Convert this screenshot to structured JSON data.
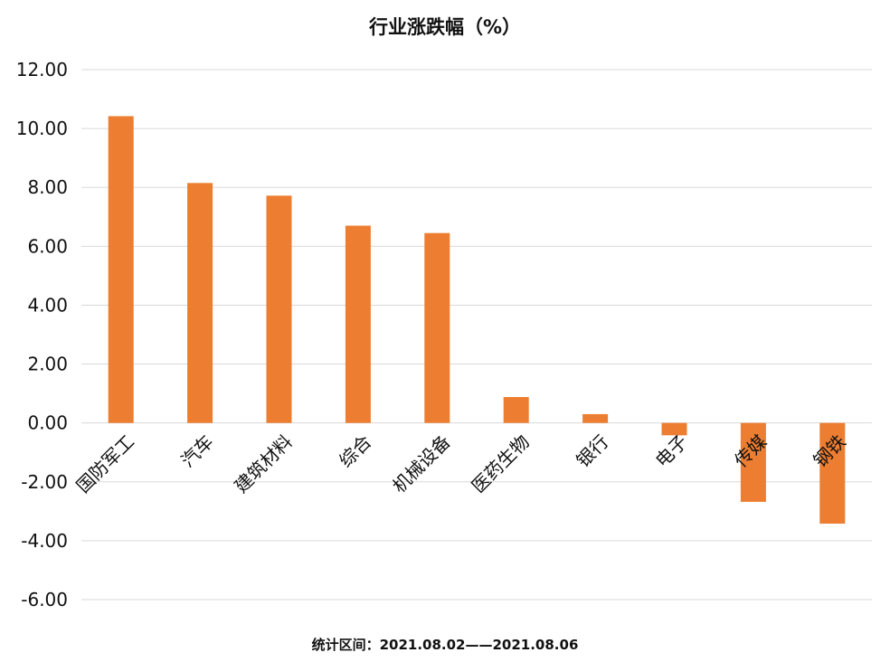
{
  "chart_data": {
    "type": "bar",
    "title": "行业涨跌幅（%）",
    "footer": "统计区间：2021.08.02——2021.08.06",
    "categories": [
      "国防军工",
      "汽车",
      "建筑材料",
      "综合",
      "机械设备",
      "医药生物",
      "银行",
      "电子",
      "传媒",
      "钢铁"
    ],
    "values": [
      10.42,
      8.15,
      7.72,
      6.7,
      6.45,
      0.88,
      0.3,
      -0.42,
      -2.68,
      -3.42
    ],
    "ylim": [
      -6,
      12
    ],
    "yticks": [
      "12.00",
      "10.00",
      "8.00",
      "6.00",
      "4.00",
      "2.00",
      "0.00",
      "-2.00",
      "-4.00",
      "-6.00"
    ],
    "bar_color": "#ED7D31",
    "grid": true,
    "legend": "none"
  }
}
